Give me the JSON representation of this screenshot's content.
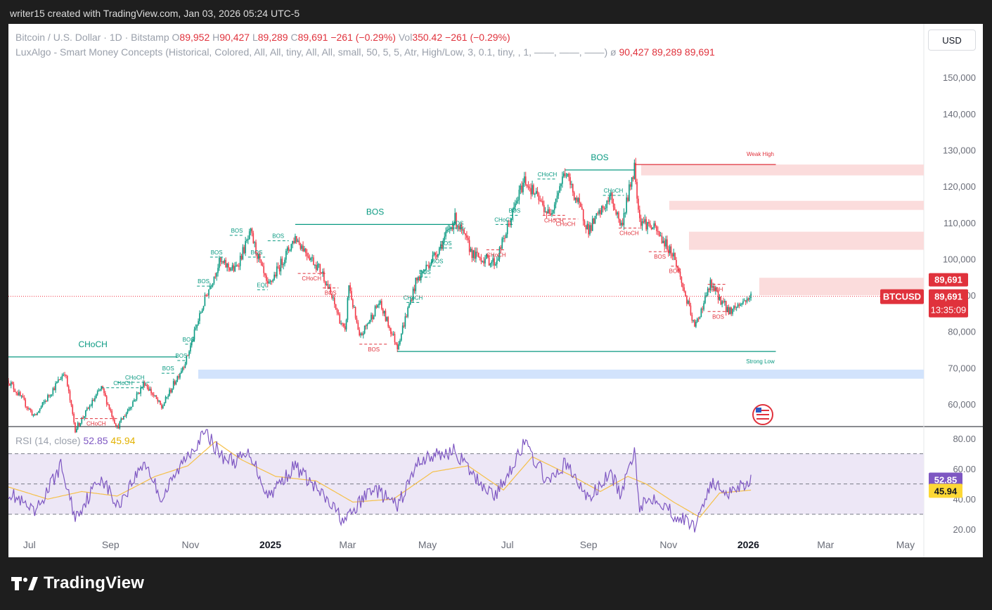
{
  "header": {
    "attribution": "writer15 created with TradingView.com, Jan 03, 2026 05:24 UTC-5"
  },
  "legend": {
    "symbol": "Bitcoin / U.S. Dollar · 1D · Bitstamp",
    "o_label": "O",
    "o": "89,952",
    "h_label": "H",
    "h": "90,427",
    "l_label": "L",
    "l": "89,289",
    "c_label": "C",
    "c": "89,691",
    "change": "−261 (−0.29%)",
    "vol_label": "Vol",
    "vol": "350.42",
    "vol_change": "−261 (−0.29%)",
    "indicator": "LuxAlgo - Smart Money Concepts (Historical, Colored, All, All, tiny, All, All, small, 50, 5, 5, Atr, High/Low, 3, 0.1, tiny, , 1, ——, ——, ——)",
    "indicator_symbol": "ø",
    "indicator_values": "90,427   89,289   89,691"
  },
  "currency_button": "USD",
  "rsi_legend": {
    "name": "RSI (14, close)",
    "rsi": "52.85",
    "ma": "45.94"
  },
  "price_labels": {
    "last": "89,691",
    "ticker": "BTCUSD",
    "price": "89,691",
    "countdown": "13:35:09",
    "rsi": "52.85",
    "rsi_ma": "45.94"
  },
  "brand": {
    "name": "TradingView"
  },
  "colors": {
    "up": "#089981",
    "down": "#f23645",
    "bullish_label": "#089981",
    "bearish_label": "#e0323c",
    "rsi_line": "#7e57c2",
    "rsi_ma": "#f5c04a",
    "rsi_band": "#ede7f6",
    "premium_zone": "#fbdcdc",
    "discount_zone": "#d2e3fc"
  },
  "chart_data": [
    {
      "type": "candlestick",
      "price_axis": {
        "ticks": [
          "60,000",
          "70,000",
          "80,000",
          "90,000",
          "100,000",
          "110,000",
          "120,000",
          "130,000",
          "140,000",
          "150,000"
        ],
        "min": 54000,
        "max": 157000
      },
      "time_axis": [
        "Jul",
        "Sep",
        "Nov",
        "2025",
        "Mar",
        "May",
        "Jul",
        "Sep",
        "Nov",
        "2026",
        "Mar",
        "May"
      ],
      "time_range": [
        "2024-06-15",
        "2026-05-15"
      ],
      "series": [
        {
          "name": "BTCUSD",
          "last": 89691
        }
      ],
      "path_points": [
        [
          "2024-06-15",
          66500
        ],
        [
          "2024-07-05",
          56500
        ],
        [
          "2024-07-28",
          69000
        ],
        [
          "2024-08-05",
          53000
        ],
        [
          "2024-08-25",
          64500
        ],
        [
          "2024-09-06",
          53500
        ],
        [
          "2024-09-27",
          66000
        ],
        [
          "2024-10-10",
          59000
        ],
        [
          "2024-10-29",
          72500
        ],
        [
          "2024-11-13",
          90000
        ],
        [
          "2024-11-23",
          99000
        ],
        [
          "2024-12-05",
          97000
        ],
        [
          "2024-12-17",
          107000
        ],
        [
          "2024-12-30",
          92000
        ],
        [
          "2025-01-20",
          106000
        ],
        [
          "2025-02-10",
          96000
        ],
        [
          "2025-02-27",
          79500
        ],
        [
          "2025-03-02",
          93000
        ],
        [
          "2025-03-10",
          78000
        ],
        [
          "2025-03-25",
          88000
        ],
        [
          "2025-04-08",
          76000
        ],
        [
          "2025-04-22",
          93500
        ],
        [
          "2025-05-10",
          103000
        ],
        [
          "2025-05-22",
          111000
        ],
        [
          "2025-06-05",
          101000
        ],
        [
          "2025-06-22",
          99000
        ],
        [
          "2025-07-14",
          122000
        ],
        [
          "2025-08-02",
          112000
        ],
        [
          "2025-08-14",
          124000
        ],
        [
          "2025-09-01",
          108000
        ],
        [
          "2025-09-18",
          117000
        ],
        [
          "2025-09-26",
          109000
        ],
        [
          "2025-10-06",
          125500
        ],
        [
          "2025-10-10",
          111000
        ],
        [
          "2025-10-22",
          108000
        ],
        [
          "2025-11-05",
          101000
        ],
        [
          "2025-11-21",
          81000
        ],
        [
          "2025-12-03",
          93000
        ],
        [
          "2025-12-17",
          85500
        ],
        [
          "2026-01-03",
          89691
        ]
      ],
      "smc_structures": [
        {
          "label": "CHoCH",
          "type": "bullish",
          "x1": "2024-06-15",
          "x2": "2024-10-22",
          "y": 73000,
          "big": true
        },
        {
          "label": "BOS",
          "type": "bullish",
          "x1": "2025-01-20",
          "x2": "2025-05-22",
          "y": 109500,
          "big": true
        },
        {
          "label": "BOS",
          "type": "bullish",
          "x1": "2025-08-14",
          "x2": "2025-10-06",
          "y": 124500,
          "big": true
        },
        {
          "label": "CHoCH",
          "type": "bullish",
          "x1": "2024-08-25",
          "x2": "2024-09-27",
          "y": 64500
        },
        {
          "label": "CHoCH",
          "type": "bullish",
          "x1": "2024-09-06",
          "x2": "2024-10-03",
          "y": 66000
        },
        {
          "label": "BOS",
          "type": "bullish",
          "x1": "2024-10-10",
          "x2": "2024-10-20",
          "y": 68500
        },
        {
          "label": "BOS",
          "type": "bullish",
          "x1": "2024-10-22",
          "x2": "2024-10-28",
          "y": 72000
        },
        {
          "label": "BOS",
          "type": "bullish",
          "x1": "2024-10-28",
          "x2": "2024-11-02",
          "y": 76500
        },
        {
          "label": "BOS",
          "type": "bullish",
          "x1": "2024-11-06",
          "x2": "2024-11-16",
          "y": 92500
        },
        {
          "label": "BOS",
          "type": "bullish",
          "x1": "2024-11-16",
          "x2": "2024-11-26",
          "y": 100500
        },
        {
          "label": "BOS",
          "type": "bullish",
          "x1": "2024-12-01",
          "x2": "2024-12-12",
          "y": 106500
        },
        {
          "label": "BOS",
          "type": "bullish",
          "x1": "2024-12-15",
          "x2": "2024-12-28",
          "y": 100500
        },
        {
          "label": "BOS",
          "type": "bullish",
          "x1": "2024-12-30",
          "x2": "2025-01-15",
          "y": 105000
        },
        {
          "label": "EQL",
          "type": "bullish",
          "x1": "2024-12-22",
          "x2": "2024-12-30",
          "y": 91500
        },
        {
          "label": "CHoCH",
          "type": "bullish",
          "x1": "2025-04-15",
          "x2": "2025-04-25",
          "y": 88000
        },
        {
          "label": "BOS",
          "type": "bullish",
          "x1": "2025-04-25",
          "x2": "2025-05-03",
          "y": 95000
        },
        {
          "label": "BOS",
          "type": "bullish",
          "x1": "2025-05-05",
          "x2": "2025-05-12",
          "y": 98000
        },
        {
          "label": "BOS",
          "type": "bullish",
          "x1": "2025-05-10",
          "x2": "2025-05-20",
          "y": 103000
        },
        {
          "label": "BOS",
          "type": "bullish",
          "x1": "2025-05-18",
          "x2": "2025-05-30",
          "y": 108500
        },
        {
          "label": "CHoCH",
          "type": "bullish",
          "x1": "2025-06-22",
          "x2": "2025-07-05",
          "y": 109500
        },
        {
          "label": "BOS",
          "type": "bullish",
          "x1": "2025-07-03",
          "x2": "2025-07-10",
          "y": 112000
        },
        {
          "label": "CHoCH",
          "type": "bullish",
          "x1": "2025-07-24",
          "x2": "2025-08-08",
          "y": 122000
        },
        {
          "label": "CHoCH",
          "type": "bullish",
          "x1": "2025-09-12",
          "x2": "2025-09-28",
          "y": 117500
        },
        {
          "label": "EQH",
          "type": "bearish",
          "x1": "2025-12-01",
          "x2": "2025-12-15",
          "y": 93000
        },
        {
          "label": "CHoCH",
          "type": "bearish",
          "x1": "2024-08-05",
          "x2": "2024-09-06",
          "y": 56000
        },
        {
          "label": "CHoCH",
          "type": "bearish",
          "x1": "2025-01-22",
          "x2": "2025-02-12",
          "y": 96000
        },
        {
          "label": "BOS",
          "type": "bearish",
          "x1": "2025-02-10",
          "x2": "2025-02-22",
          "y": 92000
        },
        {
          "label": "BOS",
          "type": "bearish",
          "x1": "2025-03-10",
          "x2": "2025-04-01",
          "y": 76500
        },
        {
          "label": "CHoCH",
          "type": "bearish",
          "x1": "2025-06-15",
          "x2": "2025-06-30",
          "y": 102500
        },
        {
          "label": "CHoCH",
          "type": "bearish",
          "x1": "2025-07-28",
          "x2": "2025-08-14",
          "y": 112000
        },
        {
          "label": "CHoCH",
          "type": "bearish",
          "x1": "2025-08-05",
          "x2": "2025-08-24",
          "y": 111000
        },
        {
          "label": "CHoCH",
          "type": "bearish",
          "x1": "2025-09-24",
          "x2": "2025-10-10",
          "y": 108500
        },
        {
          "label": "BOS",
          "type": "bearish",
          "x1": "2025-10-17",
          "x2": "2025-11-03",
          "y": 102000
        },
        {
          "label": "BOS",
          "type": "bearish",
          "x1": "2025-11-03",
          "x2": "2025-11-09",
          "y": 98000
        },
        {
          "label": "BOS",
          "type": "bearish",
          "x1": "2025-12-01",
          "x2": "2025-12-17",
          "y": 85500
        }
      ],
      "zones": [
        {
          "type": "premium",
          "y1": 123000,
          "y2": 126000
        },
        {
          "type": "premium",
          "y1": 113500,
          "y2": 116000
        },
        {
          "type": "premium",
          "y1": 102500,
          "y2": 107500
        },
        {
          "type": "premium",
          "y1": 90000,
          "y2": 94800
        },
        {
          "type": "discount",
          "y1": 67000,
          "y2": 69500
        }
      ],
      "strong_weak": [
        {
          "label": "Weak High",
          "x1": "2025-10-06",
          "x2": "2026-01-22",
          "y": 126000,
          "type": "bearish"
        },
        {
          "label": "Strong Low",
          "x1": "2025-04-08",
          "x2": "2026-01-22",
          "y": 74500,
          "type": "bullish"
        }
      ],
      "current_price_line": 89691
    },
    {
      "type": "line",
      "name": "RSI (14, close)",
      "y_axis": {
        "ticks": [
          "20.00",
          "40.00",
          "60.00",
          "80.00"
        ],
        "min": 15,
        "max": 87
      },
      "bands": {
        "upper": 70,
        "middle": 50,
        "lower": 30
      },
      "rsi_points": [
        [
          "2024-06-15",
          45
        ],
        [
          "2024-07-05",
          30
        ],
        [
          "2024-07-25",
          62
        ],
        [
          "2024-08-05",
          28
        ],
        [
          "2024-08-25",
          55
        ],
        [
          "2024-09-06",
          35
        ],
        [
          "2024-09-27",
          65
        ],
        [
          "2024-10-10",
          40
        ],
        [
          "2024-10-30",
          70
        ],
        [
          "2024-11-13",
          84
        ],
        [
          "2024-11-25",
          68
        ],
        [
          "2024-12-05",
          65
        ],
        [
          "2024-12-17",
          70
        ],
        [
          "2024-12-30",
          42
        ],
        [
          "2025-01-20",
          62
        ],
        [
          "2025-02-10",
          42
        ],
        [
          "2025-02-27",
          25
        ],
        [
          "2025-03-20",
          48
        ],
        [
          "2025-04-08",
          35
        ],
        [
          "2025-04-25",
          66
        ],
        [
          "2025-05-22",
          72
        ],
        [
          "2025-06-05",
          55
        ],
        [
          "2025-06-22",
          42
        ],
        [
          "2025-07-14",
          77
        ],
        [
          "2025-08-02",
          50
        ],
        [
          "2025-08-14",
          64
        ],
        [
          "2025-09-01",
          40
        ],
        [
          "2025-09-18",
          57
        ],
        [
          "2025-09-26",
          42
        ],
        [
          "2025-10-06",
          73
        ],
        [
          "2025-10-10",
          36
        ],
        [
          "2025-10-22",
          42
        ],
        [
          "2025-11-05",
          30
        ],
        [
          "2025-11-21",
          22
        ],
        [
          "2025-12-03",
          50
        ],
        [
          "2025-12-17",
          45
        ],
        [
          "2026-01-03",
          52.85
        ]
      ],
      "ma_points": [
        [
          "2024-06-15",
          48
        ],
        [
          "2024-07-15",
          40
        ],
        [
          "2024-08-10",
          45
        ],
        [
          "2024-09-06",
          42
        ],
        [
          "2024-10-05",
          55
        ],
        [
          "2024-10-30",
          62
        ],
        [
          "2024-11-20",
          78
        ],
        [
          "2024-12-10",
          66
        ],
        [
          "2025-01-05",
          55
        ],
        [
          "2025-02-05",
          52
        ],
        [
          "2025-03-05",
          38
        ],
        [
          "2025-04-05",
          40
        ],
        [
          "2025-05-05",
          58
        ],
        [
          "2025-06-01",
          62
        ],
        [
          "2025-06-28",
          46
        ],
        [
          "2025-07-20",
          68
        ],
        [
          "2025-08-20",
          55
        ],
        [
          "2025-09-10",
          45
        ],
        [
          "2025-10-01",
          55
        ],
        [
          "2025-10-15",
          50
        ],
        [
          "2025-11-05",
          38
        ],
        [
          "2025-11-25",
          28
        ],
        [
          "2025-12-10",
          44
        ],
        [
          "2026-01-03",
          45.94
        ]
      ],
      "last": 52.85,
      "ma_last": 45.94
    }
  ]
}
